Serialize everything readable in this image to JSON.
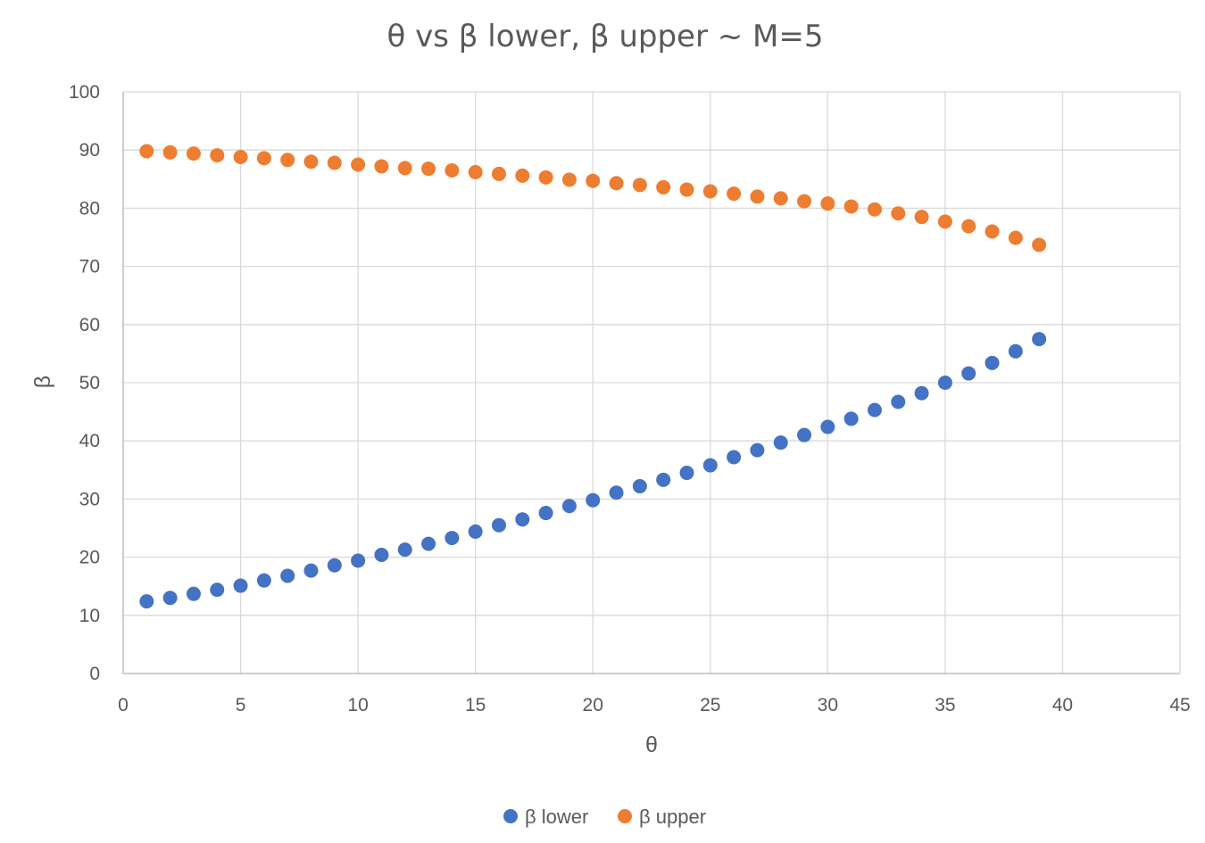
{
  "chart_data": {
    "type": "scatter",
    "title": "θ vs β lower, β upper ~ M=5",
    "xlabel": "θ",
    "ylabel": "β",
    "xlim": [
      0,
      45
    ],
    "ylim": [
      0,
      100
    ],
    "xticks": [
      0,
      5,
      10,
      15,
      20,
      25,
      30,
      35,
      40,
      45
    ],
    "yticks": [
      0,
      10,
      20,
      30,
      40,
      50,
      60,
      70,
      80,
      90,
      100
    ],
    "grid": true,
    "legend_position": "bottom",
    "x": [
      1,
      2,
      3,
      4,
      5,
      6,
      7,
      8,
      9,
      10,
      11,
      12,
      13,
      14,
      15,
      16,
      17,
      18,
      19,
      20,
      21,
      22,
      23,
      24,
      25,
      26,
      27,
      28,
      29,
      30,
      31,
      32,
      33,
      34,
      35,
      36,
      37,
      38,
      39
    ],
    "series": [
      {
        "name": "β lower",
        "color": "#4472c4",
        "values": [
          12.4,
          13.0,
          13.7,
          14.4,
          15.1,
          16.0,
          16.8,
          17.7,
          18.6,
          19.4,
          20.4,
          21.3,
          22.3,
          23.3,
          24.4,
          25.5,
          26.5,
          27.6,
          28.8,
          29.8,
          31.1,
          32.2,
          33.3,
          34.5,
          35.8,
          37.2,
          38.4,
          39.7,
          41.0,
          42.4,
          43.8,
          45.3,
          46.7,
          48.2,
          50.0,
          51.6,
          53.4,
          55.4,
          57.5
        ]
      },
      {
        "name": "β upper",
        "color": "#ed7d31",
        "values": [
          89.8,
          89.6,
          89.4,
          89.1,
          88.8,
          88.6,
          88.3,
          88.0,
          87.8,
          87.5,
          87.2,
          86.9,
          86.8,
          86.5,
          86.2,
          85.9,
          85.6,
          85.3,
          84.9,
          84.7,
          84.3,
          84.0,
          83.6,
          83.2,
          82.9,
          82.5,
          82.0,
          81.7,
          81.2,
          80.8,
          80.3,
          79.8,
          79.1,
          78.5,
          77.7,
          76.9,
          76.0,
          74.9,
          73.7
        ]
      }
    ]
  }
}
